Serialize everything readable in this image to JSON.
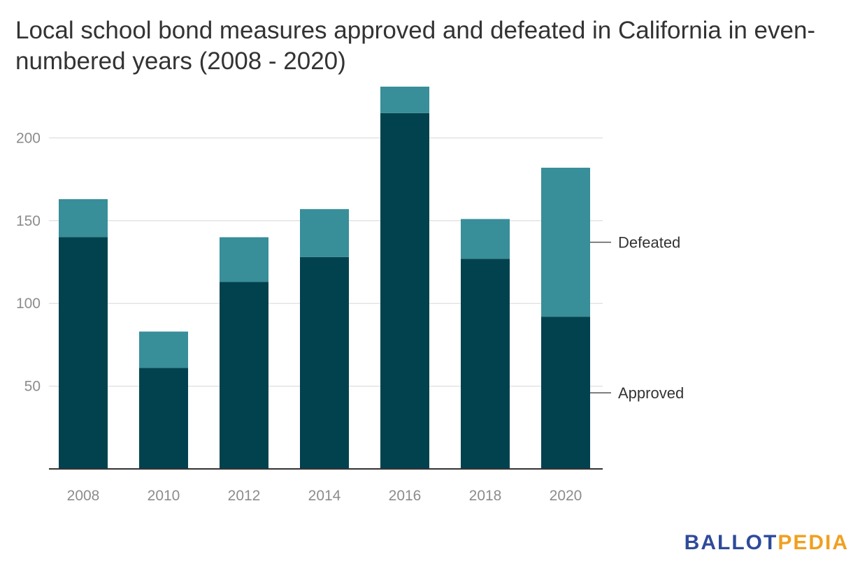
{
  "title": "Local school bond measures approved and defeated in California in even-numbered years (2008 - 2020)",
  "brand": {
    "part1": "BALLOT",
    "part2": "PEDIA"
  },
  "colors": {
    "approved": "#02424e",
    "defeated": "#388e99",
    "grid": "#e3e3e3",
    "axis": "#333333"
  },
  "chart_data": {
    "type": "bar",
    "stacked": true,
    "title": "Local school bond measures approved and defeated in California in even-numbered years (2008 - 2020)",
    "xlabel": "",
    "ylabel": "",
    "categories": [
      "2008",
      "2010",
      "2012",
      "2014",
      "2016",
      "2018",
      "2020"
    ],
    "series": [
      {
        "name": "Approved",
        "values": [
          140,
          61,
          113,
          128,
          215,
          127,
          92
        ]
      },
      {
        "name": "Defeated",
        "values": [
          23,
          22,
          27,
          29,
          16,
          24,
          90
        ]
      }
    ],
    "yticks": [
      50,
      100,
      150,
      200
    ],
    "ylim": [
      0,
      231
    ],
    "grid": true,
    "legend": "right, inline with last bar"
  }
}
